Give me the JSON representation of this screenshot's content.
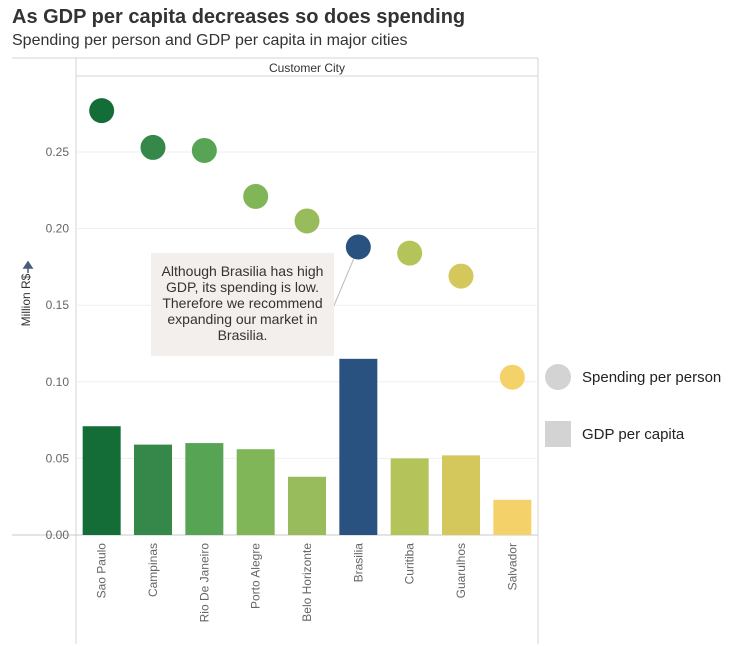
{
  "title": "As GDP per capita decreases so does spending",
  "subtitle": "Spending per person and GDP per capita in major cities",
  "annotation": "Although Brasilia has high GDP, its spending is low. Therefore we recommend expanding our market in Brasilia.",
  "legend": {
    "circle_label": "Spending per person",
    "square_label": "GDP per capita"
  },
  "chart_data": {
    "type": "bar",
    "header": "Customer City",
    "ylabel": "Million R$",
    "ylim": [
      0,
      0.3
    ],
    "yticks": [
      "0.00",
      "0.05",
      "0.10",
      "0.15",
      "0.20",
      "0.25"
    ],
    "grid": true,
    "legend_position": "right",
    "categories": [
      "Sao Paulo",
      "Campinas",
      "Rio De Janeiro",
      "Porto Alegre",
      "Belo Horizonte",
      "Brasilia",
      "Curitiba",
      "Guarulhos",
      "Salvador"
    ],
    "colors": [
      "#146c37",
      "#36884a",
      "#57a455",
      "#80b658",
      "#98bc5b",
      "#295280",
      "#b4c45a",
      "#d4c75b",
      "#f5d16a"
    ],
    "series": [
      {
        "name": "GDP per capita",
        "mark": "bar",
        "values": [
          0.071,
          0.059,
          0.06,
          0.056,
          0.038,
          0.115,
          0.05,
          0.052,
          0.023
        ]
      },
      {
        "name": "Spending per person",
        "mark": "circle",
        "values": [
          0.277,
          0.253,
          0.251,
          0.221,
          0.205,
          0.188,
          0.184,
          0.169,
          0.103
        ]
      }
    ],
    "highlight": "Brasilia"
  }
}
